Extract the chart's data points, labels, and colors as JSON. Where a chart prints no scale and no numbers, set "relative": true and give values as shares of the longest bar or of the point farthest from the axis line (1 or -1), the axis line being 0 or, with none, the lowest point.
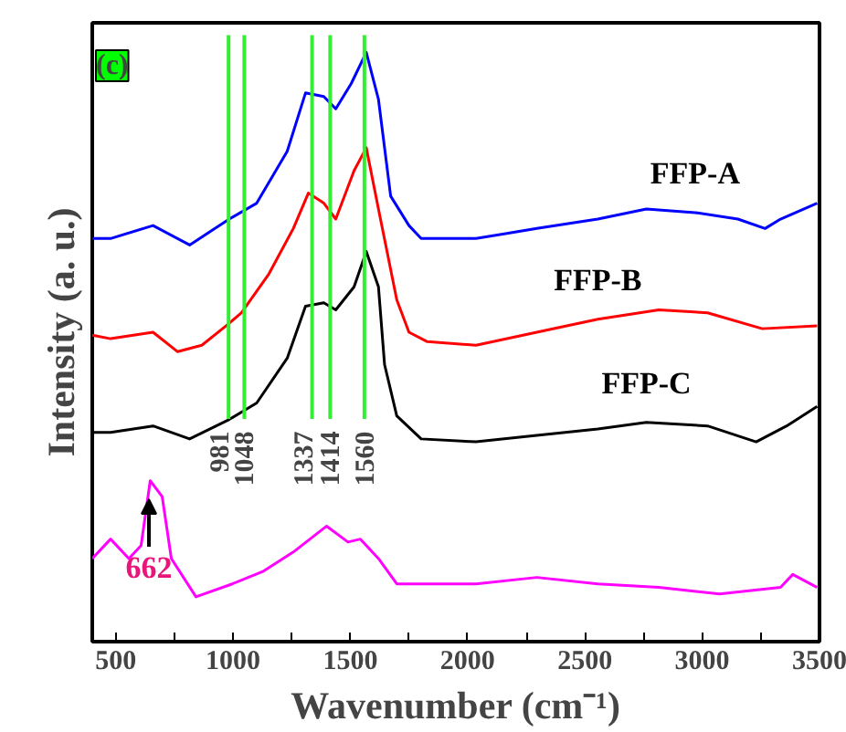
{
  "chart_data": {
    "type": "line",
    "relative": true,
    "xlabel": "Wavenumber (cm⁻¹)",
    "ylabel": "Intensity (a. u.)",
    "xlim": [
      400,
      3500
    ],
    "xticks": [
      500,
      {
        "value": 750,
        "label": null
      },
      1000,
      {
        "value": 1250,
        "label": null
      },
      1500,
      {
        "value": 1750,
        "label": null
      },
      2000,
      {
        "value": 2250,
        "label": null
      },
      2500,
      {
        "value": 2750,
        "label": null
      },
      3000,
      {
        "value": 3250,
        "label": null
      },
      3500
    ],
    "marker": "none",
    "line_style": "solid",
    "series": [
      {
        "name": "FFP-A",
        "color": "#0000ff",
        "x": [
          400,
          478,
          659,
          815,
          984,
          1101,
          1231,
          1309,
          1387,
          1438,
          1504,
          1568,
          1620,
          1672,
          1750,
          1802,
          2036,
          2295,
          2555,
          2762,
          2970,
          3152,
          3268,
          3334,
          3490
        ],
        "values": [
          0.684,
          0.684,
          0.706,
          0.673,
          0.717,
          0.744,
          0.832,
          0.931,
          0.925,
          0.904,
          0.947,
          1.0,
          0.92,
          0.756,
          0.706,
          0.684,
          0.684,
          0.701,
          0.717,
          0.734,
          0.728,
          0.717,
          0.701,
          0.717,
          0.744
        ]
      },
      {
        "name": "FFP-B",
        "color": "#ff0000",
        "x": [
          400,
          478,
          659,
          764,
          867,
          971,
          1036,
          1153,
          1257,
          1321,
          1387,
          1438,
          1516,
          1568,
          1620,
          1698,
          1750,
          1828,
          2036,
          2295,
          2555,
          2815,
          3023,
          3256,
          3490
        ],
        "values": [
          0.52,
          0.514,
          0.525,
          0.492,
          0.503,
          0.536,
          0.558,
          0.624,
          0.701,
          0.761,
          0.744,
          0.717,
          0.799,
          0.838,
          0.734,
          0.58,
          0.525,
          0.509,
          0.503,
          0.525,
          0.547,
          0.563,
          0.558,
          0.531,
          0.536
        ]
      },
      {
        "name": "FFP-C",
        "color": "#000000",
        "x": [
          400,
          478,
          659,
          815,
          984,
          1101,
          1231,
          1309,
          1387,
          1438,
          1516,
          1568,
          1620,
          1646,
          1698,
          1802,
          2036,
          2295,
          2555,
          2762,
          3023,
          3230,
          3360,
          3490
        ],
        "values": [
          0.355,
          0.355,
          0.366,
          0.344,
          0.377,
          0.405,
          0.481,
          0.569,
          0.575,
          0.563,
          0.602,
          0.662,
          0.602,
          0.47,
          0.383,
          0.344,
          0.339,
          0.35,
          0.361,
          0.372,
          0.366,
          0.339,
          0.366,
          0.399
        ]
      },
      {
        "color": "#ff00ff",
        "x": [
          400,
          478,
          556,
          608,
          647,
          698,
          737,
          842,
          997,
          1127,
          1257,
          1399,
          1490,
          1543,
          1620,
          1698,
          2036,
          2295,
          2555,
          2815,
          3074,
          3334,
          3386,
          3490
        ],
        "values": [
          0.141,
          0.174,
          0.141,
          0.163,
          0.273,
          0.246,
          0.141,
          0.076,
          0.098,
          0.119,
          0.152,
          0.196,
          0.169,
          0.174,
          0.141,
          0.098,
          0.098,
          0.109,
          0.098,
          0.092,
          0.081,
          0.092,
          0.114,
          0.092
        ]
      }
    ],
    "ref_lines": [
      {
        "axis": "x",
        "value": 981,
        "label": "981",
        "color": "#33ee33"
      },
      {
        "axis": "x",
        "value": 1048,
        "label": "1048",
        "color": "#33ee33"
      },
      {
        "axis": "x",
        "value": 1337,
        "label": "1337",
        "color": "#33ee33"
      },
      {
        "axis": "x",
        "value": 1414,
        "label": "1414",
        "color": "#33ee33"
      },
      {
        "axis": "x",
        "value": 1560,
        "label": "1560",
        "color": "#33ee33"
      }
    ],
    "annotations": [
      "(c)",
      "662"
    ]
  }
}
